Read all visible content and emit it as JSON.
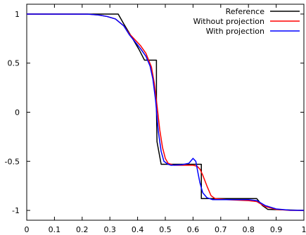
{
  "chart_data": {
    "type": "line",
    "title": "",
    "xlabel": "",
    "ylabel": "",
    "xlim": [
      0,
      1
    ],
    "ylim": [
      -1.1,
      1.1
    ],
    "xticks": [
      0,
      0.1,
      0.2,
      0.3,
      0.4,
      0.5,
      0.6,
      0.7,
      0.8,
      0.9,
      1
    ],
    "yticks": [
      -1,
      -0.5,
      0,
      0.5,
      1
    ],
    "xtick_labels": [
      "0",
      "0.1",
      "0.2",
      "0.3",
      "0.4",
      "0.5",
      "0.6",
      "0.7",
      "0.8",
      "0.9",
      "1"
    ],
    "ytick_labels": [
      "-1",
      "-0.5",
      "0",
      "0.5",
      "1"
    ],
    "grid": false,
    "legend_position": "top-right",
    "series": [
      {
        "name": "Reference",
        "color": "#000000",
        "points": [
          [
            0,
            1
          ],
          [
            0.33,
            1
          ],
          [
            0.35,
            0.9
          ],
          [
            0.38,
            0.76
          ],
          [
            0.405,
            0.64
          ],
          [
            0.425,
            0.53
          ],
          [
            0.468,
            0.53
          ],
          [
            0.468,
            0.04
          ],
          [
            0.47,
            -0.3
          ],
          [
            0.485,
            -0.53
          ],
          [
            0.63,
            -0.53
          ],
          [
            0.63,
            -0.88
          ],
          [
            0.83,
            -0.88
          ],
          [
            0.85,
            -0.95
          ],
          [
            0.87,
            -0.99
          ],
          [
            1,
            -1
          ]
        ]
      },
      {
        "name": "Without projection",
        "color": "#ff0000",
        "points": [
          [
            0,
            1
          ],
          [
            0.22,
            0.999
          ],
          [
            0.26,
            0.99
          ],
          [
            0.29,
            0.975
          ],
          [
            0.32,
            0.95
          ],
          [
            0.35,
            0.88
          ],
          [
            0.37,
            0.8
          ],
          [
            0.39,
            0.74
          ],
          [
            0.41,
            0.68
          ],
          [
            0.43,
            0.6
          ],
          [
            0.45,
            0.46
          ],
          [
            0.46,
            0.3
          ],
          [
            0.47,
            0.07
          ],
          [
            0.48,
            -0.18
          ],
          [
            0.49,
            -0.36
          ],
          [
            0.5,
            -0.47
          ],
          [
            0.51,
            -0.52
          ],
          [
            0.53,
            -0.54
          ],
          [
            0.6,
            -0.54
          ],
          [
            0.615,
            -0.55
          ],
          [
            0.625,
            -0.58
          ],
          [
            0.635,
            -0.64
          ],
          [
            0.65,
            -0.75
          ],
          [
            0.665,
            -0.85
          ],
          [
            0.68,
            -0.88
          ],
          [
            0.72,
            -0.89
          ],
          [
            0.8,
            -0.9
          ],
          [
            0.83,
            -0.91
          ],
          [
            0.86,
            -0.96
          ],
          [
            0.9,
            -0.99
          ],
          [
            0.95,
            -1
          ],
          [
            1,
            -1
          ]
        ]
      },
      {
        "name": "With projection",
        "color": "#0000ff",
        "points": [
          [
            0,
            1
          ],
          [
            0.22,
            0.999
          ],
          [
            0.26,
            0.99
          ],
          [
            0.29,
            0.975
          ],
          [
            0.32,
            0.95
          ],
          [
            0.35,
            0.88
          ],
          [
            0.37,
            0.79
          ],
          [
            0.39,
            0.72
          ],
          [
            0.41,
            0.65
          ],
          [
            0.43,
            0.57
          ],
          [
            0.445,
            0.47
          ],
          [
            0.455,
            0.34
          ],
          [
            0.465,
            0.12
          ],
          [
            0.475,
            -0.2
          ],
          [
            0.485,
            -0.4
          ],
          [
            0.495,
            -0.5
          ],
          [
            0.51,
            -0.53
          ],
          [
            0.52,
            -0.54
          ],
          [
            0.56,
            -0.535
          ],
          [
            0.585,
            -0.52
          ],
          [
            0.6,
            -0.47
          ],
          [
            0.61,
            -0.5
          ],
          [
            0.618,
            -0.62
          ],
          [
            0.625,
            -0.72
          ],
          [
            0.635,
            -0.82
          ],
          [
            0.65,
            -0.87
          ],
          [
            0.67,
            -0.89
          ],
          [
            0.75,
            -0.89
          ],
          [
            0.8,
            -0.89
          ],
          [
            0.83,
            -0.9
          ],
          [
            0.86,
            -0.95
          ],
          [
            0.9,
            -0.985
          ],
          [
            0.95,
            -0.998
          ],
          [
            1,
            -1
          ]
        ]
      }
    ]
  }
}
